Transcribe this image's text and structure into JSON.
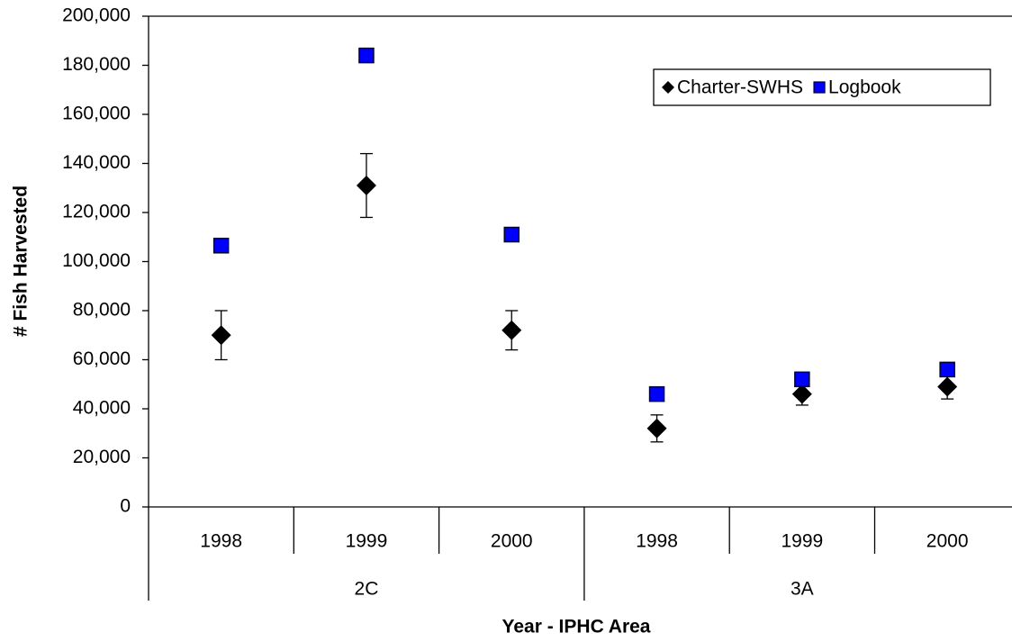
{
  "chart_data": {
    "type": "scatter",
    "y_label": "# Fish Harvested",
    "x_label": "Year - IPHC Area",
    "groups": [
      {
        "name": "2C",
        "categories": [
          "1998",
          "1999",
          "2000"
        ]
      },
      {
        "name": "3A",
        "categories": [
          "1998",
          "1999",
          "2000"
        ]
      }
    ],
    "series": [
      {
        "name": "Charter-SWHS",
        "color": "#000000",
        "marker": "diamond",
        "values": [
          70000,
          131000,
          72000,
          32000,
          46000,
          49000
        ],
        "errors": [
          10000,
          13000,
          8000,
          5500,
          4500,
          5000
        ]
      },
      {
        "name": "Logbook",
        "color": "#0000ff",
        "marker": "square",
        "values": [
          106500,
          184000,
          111000,
          46000,
          52000,
          56000
        ]
      }
    ],
    "ylim": [
      0,
      200000
    ],
    "yticks": [
      0,
      {
        "value": 20000,
        "label": "20,000"
      },
      {
        "value": 40000,
        "label": "40,000"
      },
      {
        "value": 60000,
        "label": "60,000"
      },
      {
        "value": 80000,
        "label": "80,000"
      },
      {
        "value": 100000,
        "label": "100,000"
      },
      {
        "value": 120000,
        "label": "120,000"
      },
      {
        "value": 140000,
        "label": "140,000"
      },
      {
        "value": 160000,
        "label": "160,000"
      },
      {
        "value": 180000,
        "label": "180,000"
      },
      {
        "value": 200000,
        "label": "200,000"
      }
    ],
    "legend": "upper right"
  }
}
